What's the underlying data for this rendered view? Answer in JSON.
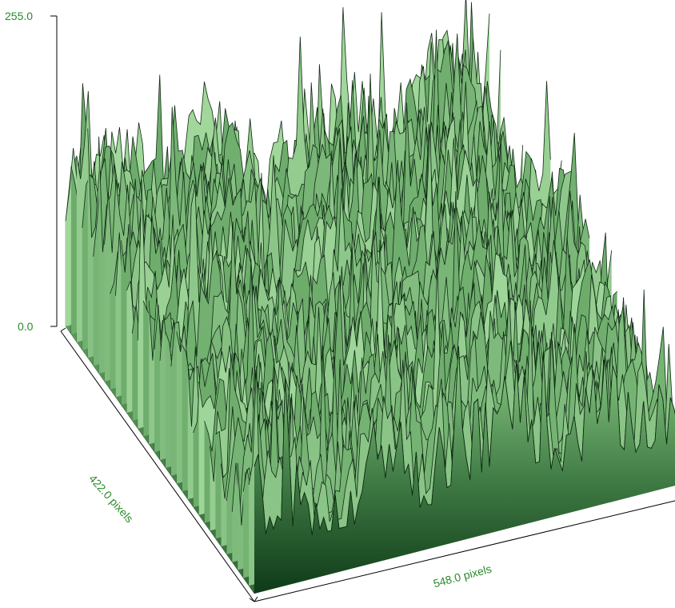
{
  "chart_data": {
    "type": "surface",
    "z_axis": {
      "ticks": [
        "255.0",
        "0.0"
      ],
      "range": [
        0,
        255
      ]
    },
    "x_axis": {
      "label": "548.0 pixels",
      "range": [
        0,
        548
      ]
    },
    "y_axis": {
      "label": "422.0 pixels",
      "range": [
        0,
        422
      ]
    },
    "grid": false,
    "colors": {
      "surface_light": "#b8eab0",
      "surface_mid": "#5a9c5a",
      "surface_dark": "#0e3a18",
      "wire": "#0f2a14",
      "axis": "#000000",
      "label": "#2a8a2a"
    }
  }
}
